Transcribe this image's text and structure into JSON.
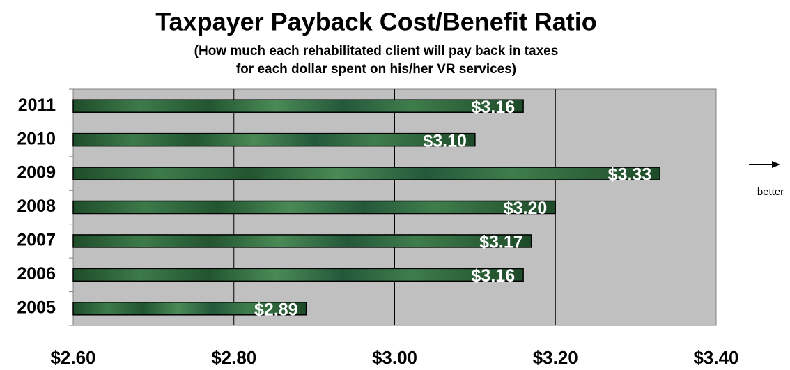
{
  "chart_data": {
    "type": "hbar",
    "title": "Taxpayer Payback Cost/Benefit Ratio",
    "subtitle": [
      "(How much each rehabilitated client will pay back in taxes",
      "for each dollar spent on his/her VR services)"
    ],
    "categories": [
      "2011",
      "2010",
      "2009",
      "2008",
      "2007",
      "2006",
      "2005"
    ],
    "values": [
      3.16,
      3.1,
      3.33,
      3.2,
      3.17,
      3.16,
      2.89
    ],
    "value_labels": [
      "$3.16",
      "$3.10",
      "$3.33",
      "$3.20",
      "$3.17",
      "$3.16",
      "$2.89"
    ],
    "color": "#2e6b3a",
    "xlim": [
      2.6,
      3.4
    ],
    "xticks": [
      {
        "value": 2.6,
        "label": "$2.60"
      },
      {
        "value": 2.8,
        "label": "$2.80"
      },
      {
        "value": 3.0,
        "label": "$3.00"
      },
      {
        "value": 3.2,
        "label": "$3.20"
      },
      {
        "value": 3.4,
        "label": "$3.40"
      }
    ],
    "grid": true,
    "annotation": "better"
  }
}
